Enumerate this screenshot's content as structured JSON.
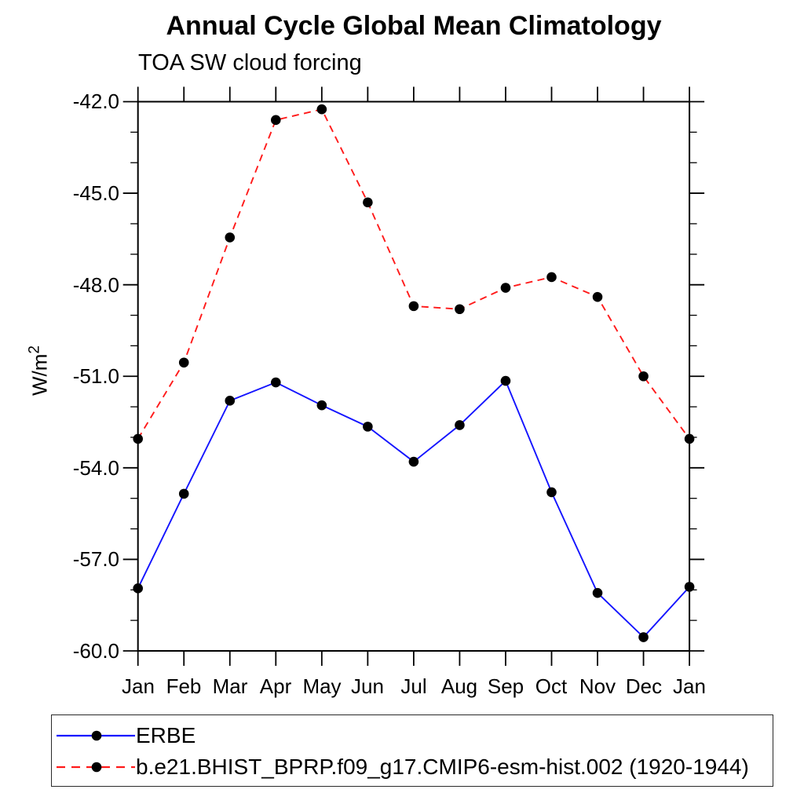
{
  "title": "Annual Cycle Global Mean Climatology",
  "subtitle": "TOA SW cloud forcing",
  "y_axis": {
    "label_base": "W/m",
    "label_sup": "2",
    "tick_labels": [
      "-42.0",
      "-45.0",
      "-48.0",
      "-51.0",
      "-54.0",
      "-57.0",
      "-60.0"
    ]
  },
  "chart_data": {
    "type": "line",
    "title": "Annual Cycle Global Mean Climatology",
    "subtitle": "TOA SW cloud forcing",
    "ylabel": "W/m^2",
    "xlabel": "",
    "categories": [
      "Jan",
      "Feb",
      "Mar",
      "Apr",
      "May",
      "Jun",
      "Jul",
      "Aug",
      "Sep",
      "Oct",
      "Nov",
      "Dec",
      "Jan"
    ],
    "ylim": [
      -60,
      -42
    ],
    "yticks": [
      -42,
      -45,
      -48,
      -51,
      -54,
      -57,
      -60
    ],
    "ytick_minor_step": 1,
    "grid": false,
    "legend_position": "bottom-left",
    "axis_color": "#000000",
    "marker_color": "#000000",
    "series": [
      {
        "name": "ERBE",
        "color": "#1414ff",
        "style": "solid",
        "marker": "circle",
        "values": [
          -57.95,
          -54.85,
          -51.8,
          -51.2,
          -51.95,
          -52.65,
          -53.8,
          -52.6,
          -51.15,
          -54.8,
          -58.1,
          -59.55,
          -57.9
        ]
      },
      {
        "name": "b.e21.BHIST_BPRP.f09_g17.CMIP6-esm-hist.002 (1920-1944)",
        "color": "#ff1a1a",
        "style": "dashed",
        "marker": "circle",
        "values": [
          -53.05,
          -50.55,
          -46.45,
          -42.6,
          -42.25,
          -45.3,
          -48.7,
          -48.8,
          -48.1,
          -47.75,
          -48.4,
          -51.0,
          -53.05
        ]
      }
    ]
  }
}
